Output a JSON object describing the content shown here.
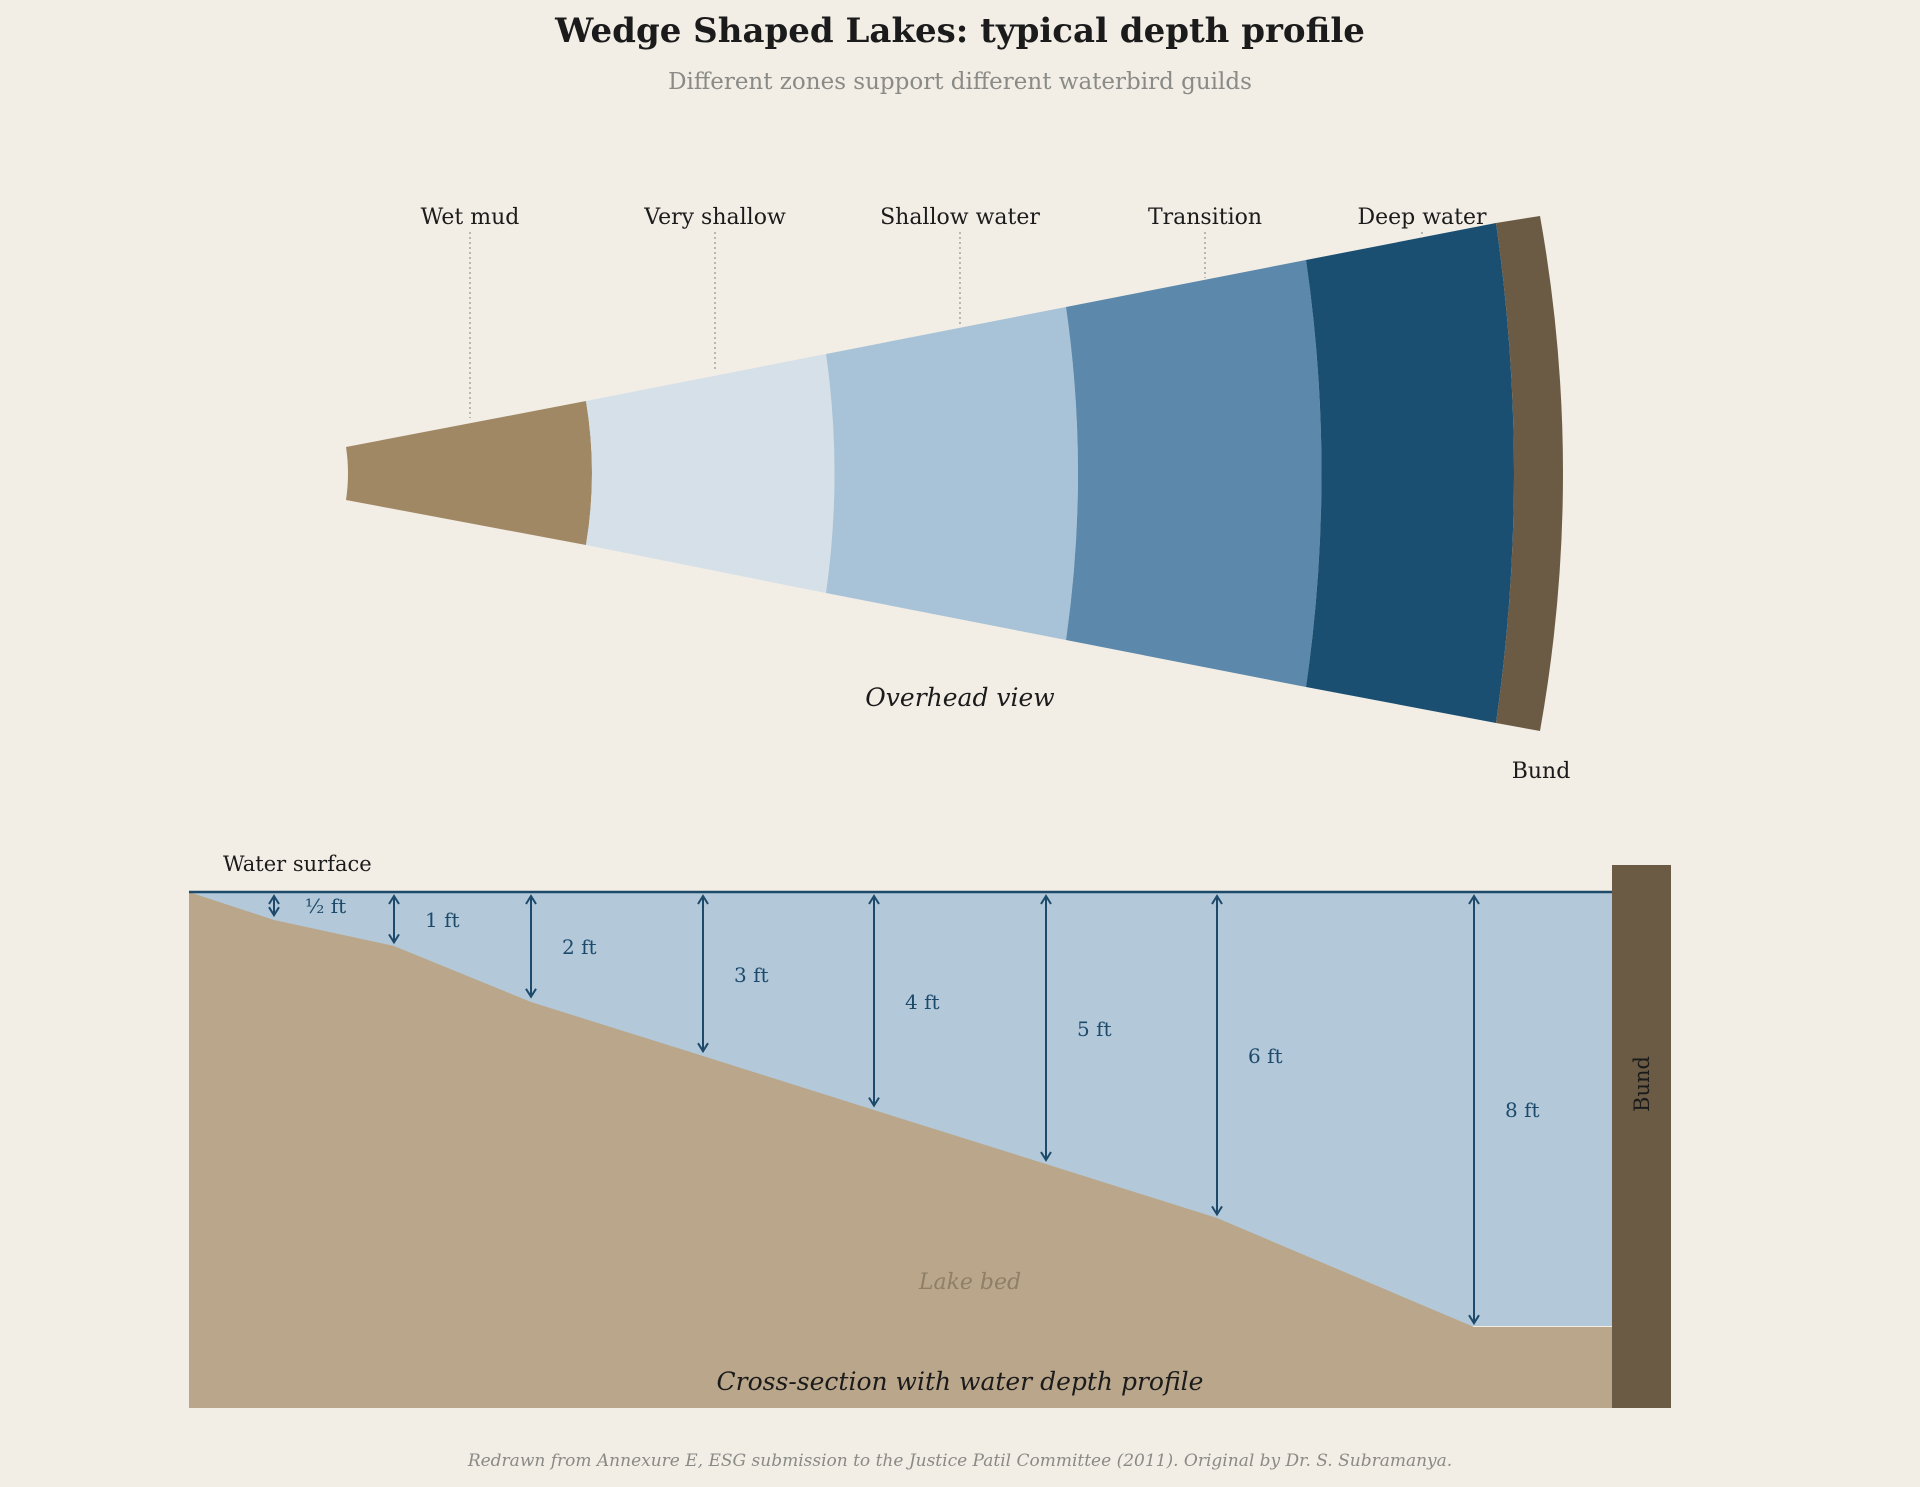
{
  "title": "Wedge Shaped Lakes: typical depth profile",
  "subtitle": "Different zones support different waterbird guilds",
  "overhead": {
    "caption": "Overhead view",
    "zones": [
      {
        "label": "Wet mud",
        "color": "#a18865"
      },
      {
        "label": "Very shallow",
        "color": "#d5e0e9"
      },
      {
        "label": "Shallow water",
        "color": "#a8c3d8"
      },
      {
        "label": "Transition",
        "color": "#5b88ab"
      },
      {
        "label": "Deep water",
        "color": "#1b4f72"
      }
    ],
    "bund": {
      "label": "Bund",
      "color": "#6b5b45"
    }
  },
  "cross_section": {
    "caption": "Cross-section with water depth profile",
    "water_surface_label": "Water surface",
    "lake_bed_label": "Lake bed",
    "bund_label": "Bund",
    "water_color": "#b3c9da",
    "bed_color": "#baa68a",
    "bund_color": "#6b5b45",
    "line_color": "#1d4a6b",
    "depths": [
      {
        "label": "½ ft",
        "ft": 0.5
      },
      {
        "label": "1 ft",
        "ft": 1
      },
      {
        "label": "2 ft",
        "ft": 2
      },
      {
        "label": "3 ft",
        "ft": 3
      },
      {
        "label": "4 ft",
        "ft": 4
      },
      {
        "label": "5 ft",
        "ft": 5
      },
      {
        "label": "6 ft",
        "ft": 6
      },
      {
        "label": "8 ft",
        "ft": 8
      }
    ]
  },
  "source": "Redrawn from Annexure E, ESG submission to the Justice Patil Committee (2011). Original by Dr. S. Subramanya."
}
